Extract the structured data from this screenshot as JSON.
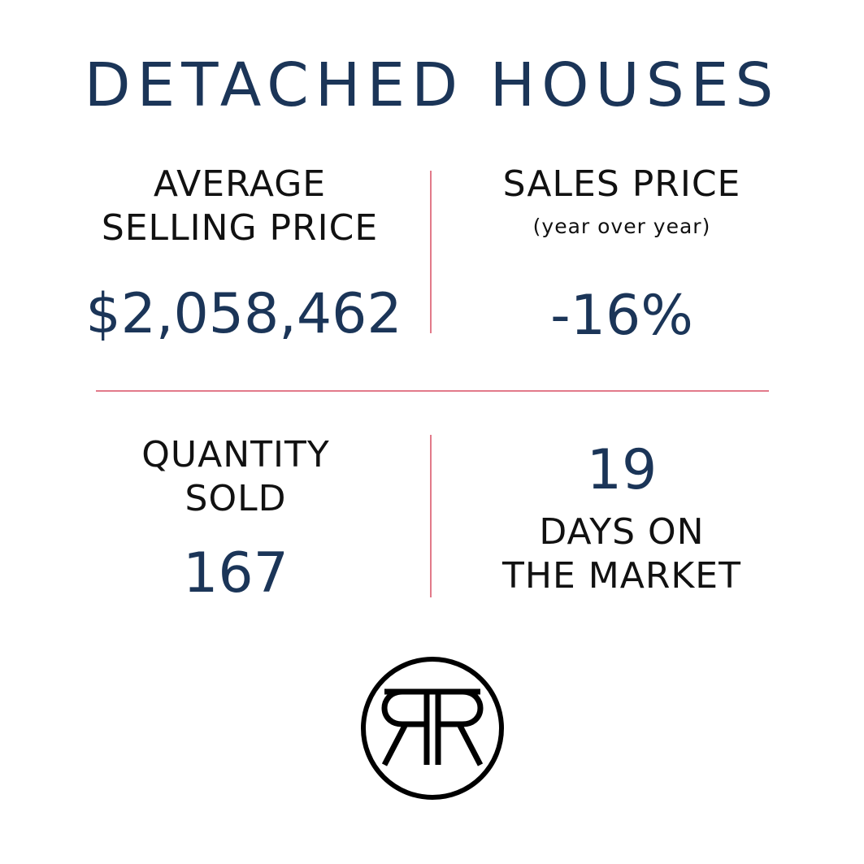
{
  "title": "DETACHED HOUSES",
  "stats": {
    "avg_price": {
      "label_line1": "AVERAGE",
      "label_line2": "SELLING PRICE",
      "value": "$2,058,462"
    },
    "sales_price": {
      "label": "SALES PRICE",
      "sublabel": "(year over year)",
      "value": "-16%"
    },
    "quantity": {
      "label_line1": "QUANTITY",
      "label_line2": "SOLD",
      "value": "167"
    },
    "days": {
      "value": "19",
      "label_line1": "DAYS ON",
      "label_line2": "THE MARKET"
    }
  },
  "logo": {
    "icon": "rr-monogram-icon",
    "text": "RR"
  },
  "colors": {
    "navy": "#1b3558",
    "divider": "#e27a8a",
    "text": "#111111"
  }
}
